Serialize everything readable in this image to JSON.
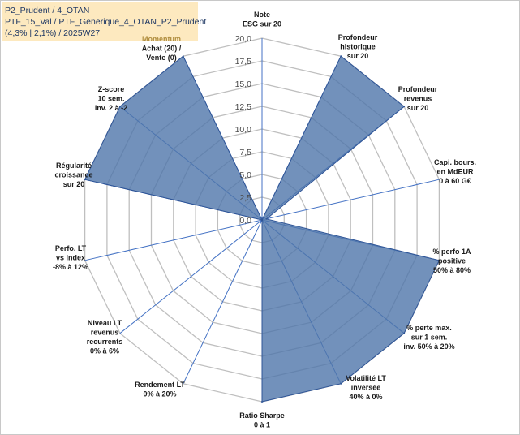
{
  "header": {
    "line1": "P2_Prudent / 4_OTAN",
    "line2": "PTF_15_Val / PTF_Generique_4_OTAN_P2_Prudent",
    "line3": "(4,3% | 2,1%) / 2025W27"
  },
  "colors": {
    "fill": "#4f76aa",
    "stroke": "#2f5597",
    "grid": "#bfbfbf",
    "spoke": "#4472c4",
    "info_bg": "#fde9bf",
    "momentum": "#b08d3e"
  },
  "chart_data": {
    "type": "radar",
    "rmax": 20,
    "ticks": [
      "0,0",
      "2,5",
      "5,0",
      "7,5",
      "10,0",
      "12,5",
      "15,0",
      "17,5",
      "20,0"
    ],
    "axes": [
      {
        "lines": [
          "Note",
          "ESG sur 20"
        ],
        "value": 0
      },
      {
        "lines": [
          "Profondeur",
          "historique",
          "sur 20"
        ],
        "value": 20
      },
      {
        "lines": [
          "Profondeur",
          "revenus",
          "sur 20"
        ],
        "value": 20
      },
      {
        "lines": [
          "Capi. bours.",
          "en MdEUR",
          "0 à 60 G€"
        ],
        "value": 0.5
      },
      {
        "lines": [
          "% perfo 1A",
          "positive",
          "50% à 80%"
        ],
        "value": 20
      },
      {
        "lines": [
          "% perte max.",
          "sur 1 sem.",
          "inv. 50% à 20%"
        ],
        "value": 20
      },
      {
        "lines": [
          "Volatilité LT",
          "inversée",
          "40% à 0%"
        ],
        "value": 20
      },
      {
        "lines": [
          "Ratio Sharpe",
          "0 à 1"
        ],
        "value": 20
      },
      {
        "lines": [
          "Rendement LT",
          "0% à 20%"
        ],
        "value": 0
      },
      {
        "lines": [
          "Niveau LT",
          "revenus",
          "recurrents",
          "0% à 6%"
        ],
        "value": 0
      },
      {
        "lines": [
          "Perfo. LT",
          "vs index",
          "-8% à 12%"
        ],
        "value": 0
      },
      {
        "lines": [
          "Régularité",
          "croissance",
          "sur 20"
        ],
        "value": 20
      },
      {
        "lines": [
          "Z-score",
          "10 sem.",
          "inv. 2 à -2"
        ],
        "value": 20
      },
      {
        "lines": [
          "Momentum",
          "Achat (20) /",
          "Vente (0)"
        ],
        "value": 20
      }
    ]
  }
}
